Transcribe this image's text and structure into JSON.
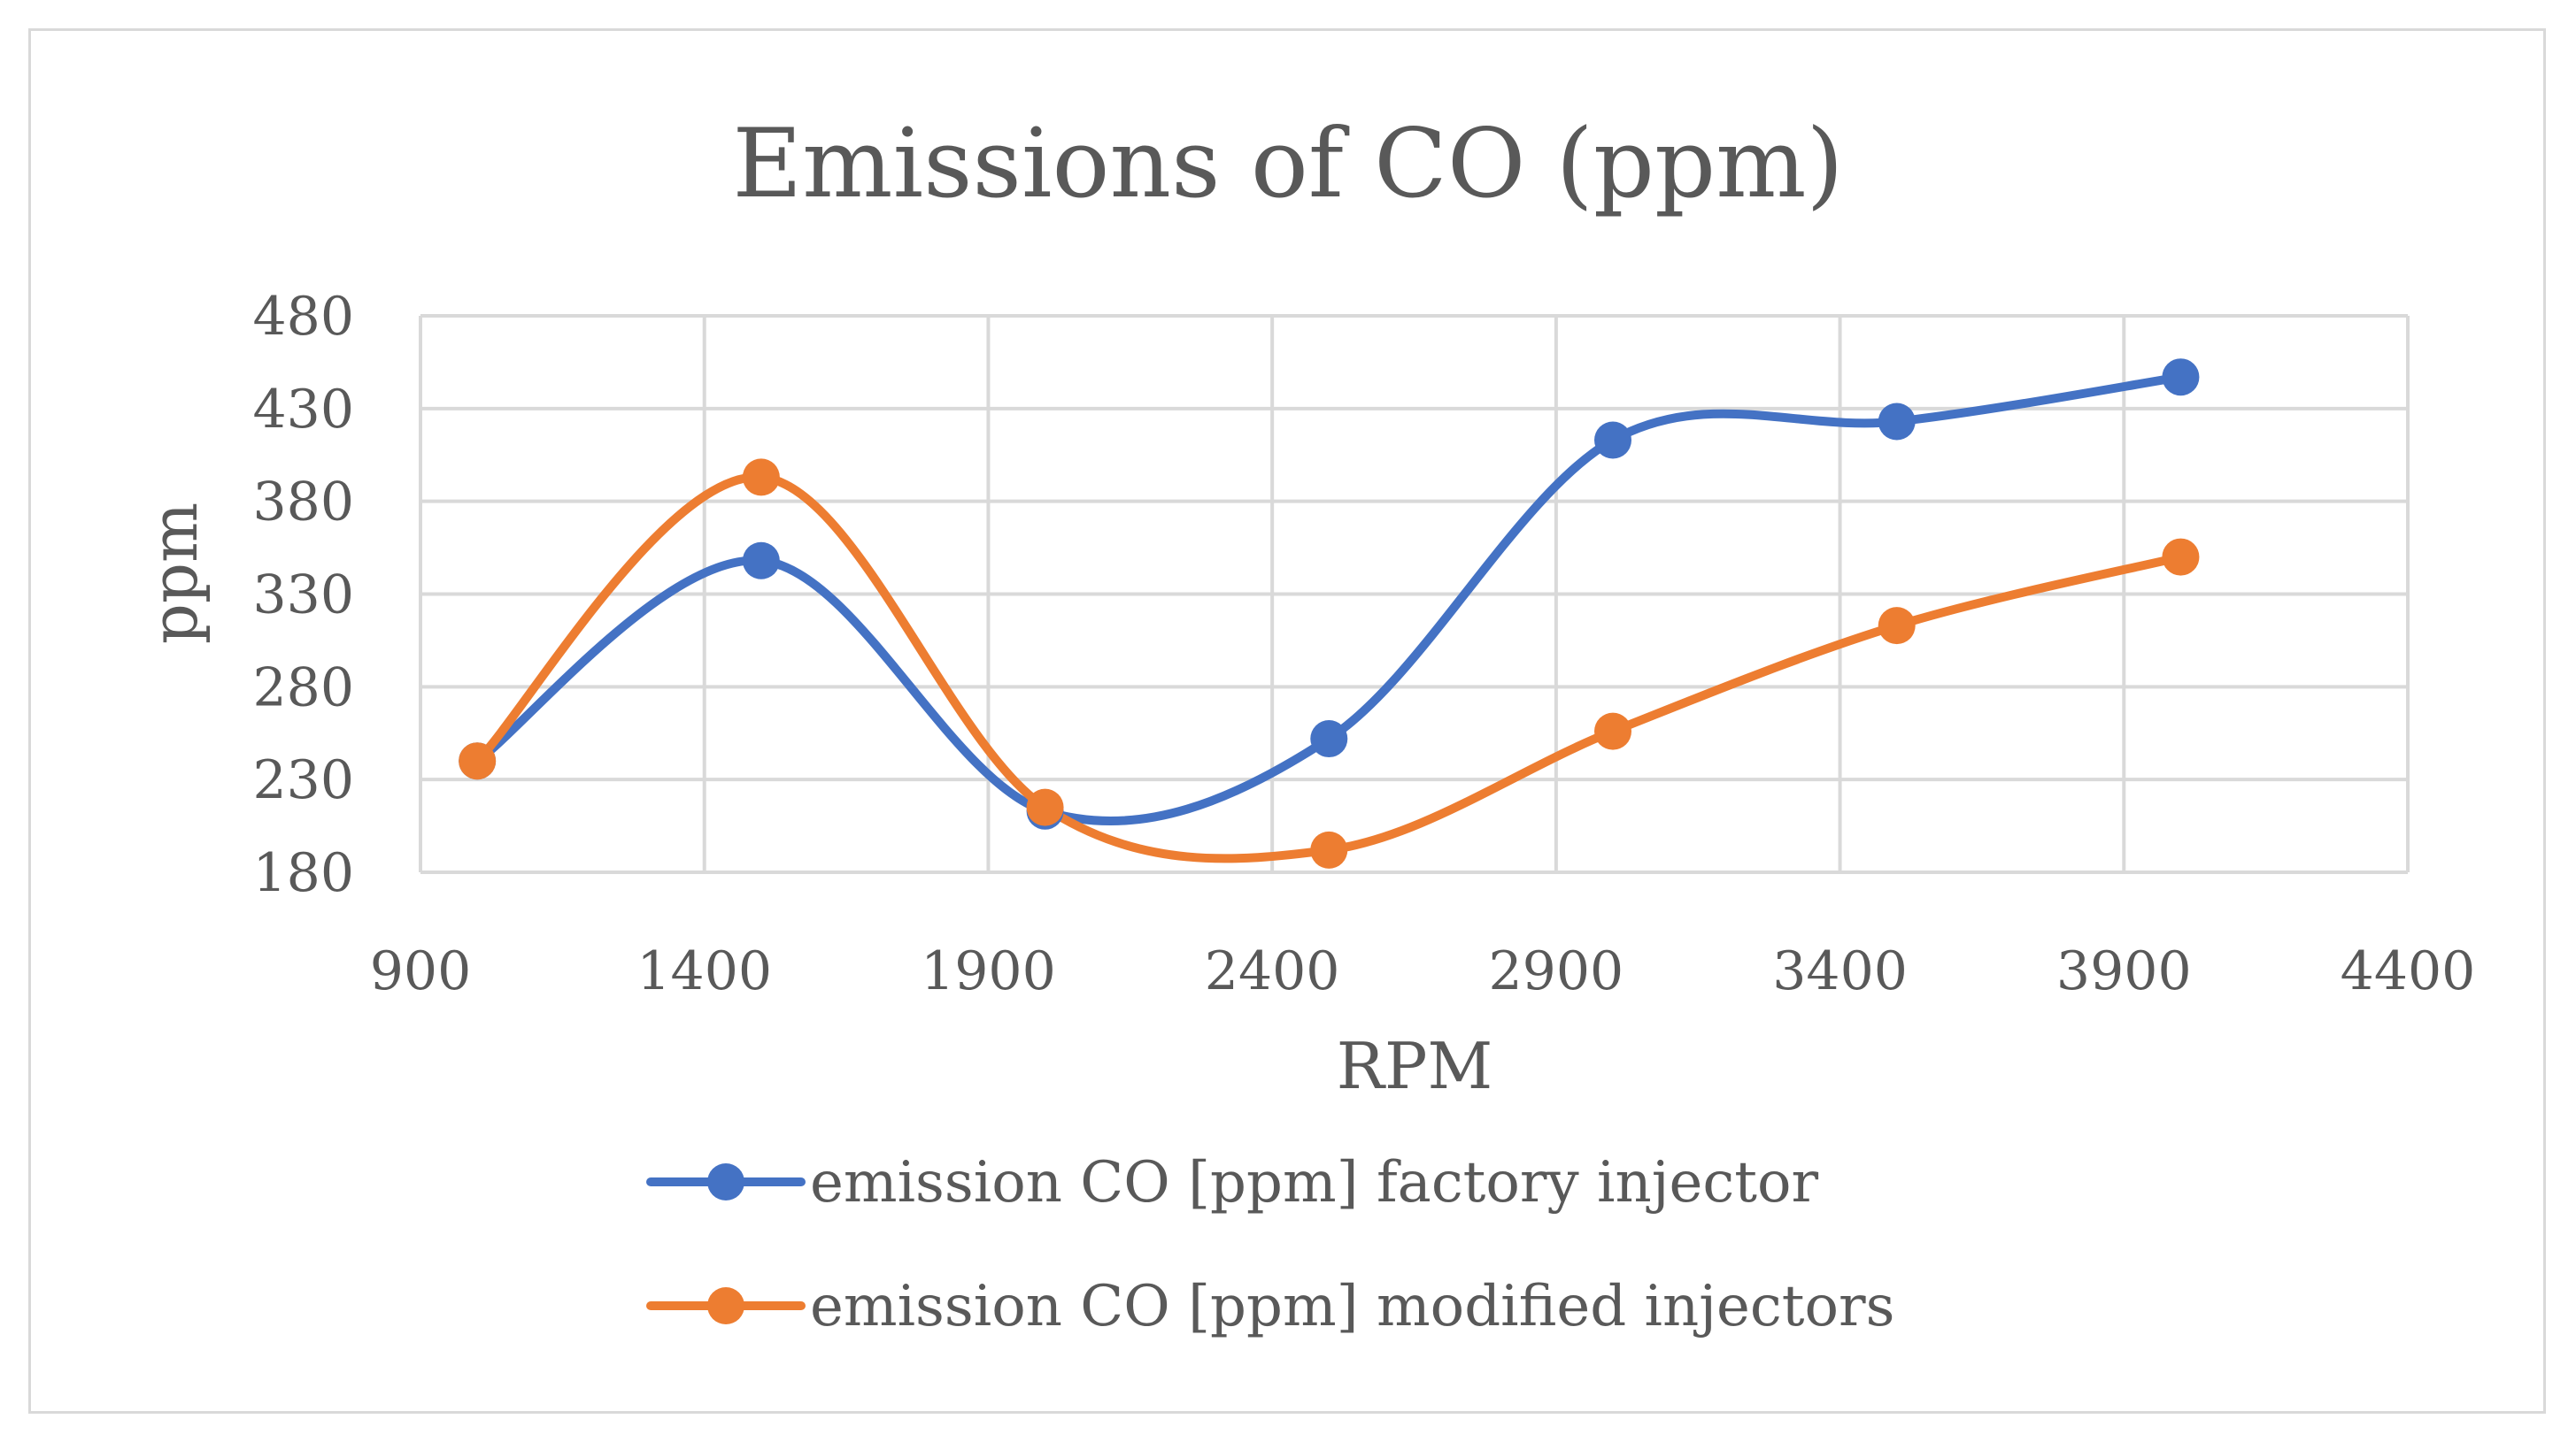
{
  "chart_data": {
    "type": "line",
    "title": "Emissions of CO (ppm)",
    "xlabel": "RPM",
    "ylabel": "ppm",
    "xlim": [
      900,
      4400
    ],
    "ylim": [
      180,
      480
    ],
    "x_ticks": [
      900,
      1400,
      1900,
      2400,
      2900,
      3400,
      3900,
      4400
    ],
    "y_ticks": [
      180,
      230,
      280,
      330,
      380,
      430,
      480
    ],
    "x_tick_labels": [
      "900",
      "1400",
      "1900",
      "2400",
      "2900",
      "3400",
      "3900",
      "4400"
    ],
    "y_tick_labels": [
      "180",
      "230",
      "280",
      "330",
      "380",
      "430",
      "480"
    ],
    "grid": true,
    "smooth": true,
    "legend_position": "bottom",
    "series": [
      {
        "name": "emission CO [ppm] factory injector",
        "color": "#4472C4",
        "x": [
          1000,
          1500,
          2000,
          2500,
          3000,
          3500,
          4000
        ],
        "y": [
          240,
          348,
          213,
          252,
          413,
          423,
          447
        ]
      },
      {
        "name": "emission CO [ppm] modified injectors",
        "color": "#ED7D31",
        "x": [
          1000,
          1500,
          2000,
          2500,
          3000,
          3500,
          4000
        ],
        "y": [
          240,
          393,
          215,
          192,
          256,
          313,
          350
        ]
      }
    ]
  }
}
